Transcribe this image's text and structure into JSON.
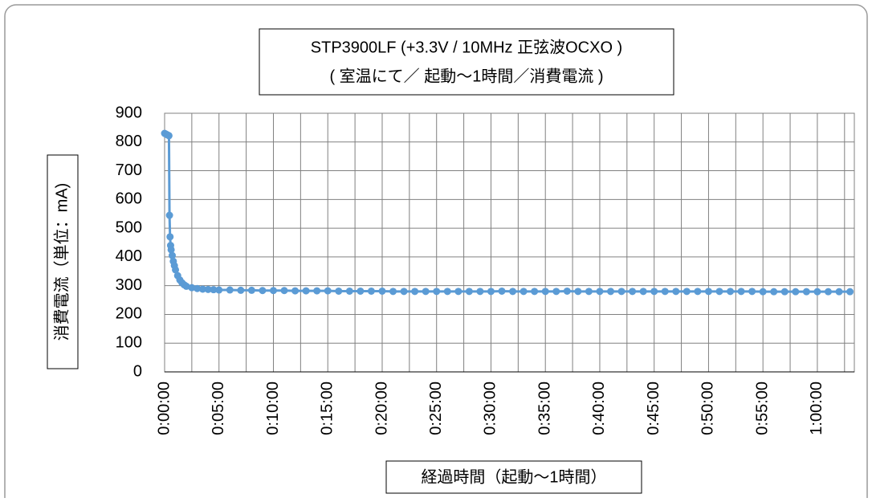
{
  "chart_data": {
    "type": "line",
    "title": [
      "STP3900LF (+3.3V / 10MHz 正弦波OCXO )",
      "( 室温にて／ 起動～1時間／消費電流 )"
    ],
    "x_label": "経過時間（起動～1時間）",
    "y_label": "消費電流（単位：mA)",
    "series": [
      {
        "name": "消費電流",
        "color": "#5b9bd5",
        "x": [
          0,
          0.1,
          0.2,
          0.3,
          0.4,
          0.45,
          0.5,
          0.55,
          0.6,
          0.7,
          0.8,
          0.9,
          1,
          1.2,
          1.4,
          1.6,
          1.8,
          2,
          2.5,
          3,
          3.5,
          4,
          4.5,
          5,
          6,
          7,
          8,
          9,
          10,
          11,
          12,
          13,
          14,
          15,
          16,
          17,
          18,
          19,
          20,
          21,
          22,
          23,
          24,
          25,
          26,
          27,
          28,
          29,
          30,
          31,
          32,
          33,
          34,
          35,
          36,
          37,
          38,
          39,
          40,
          41,
          42,
          43,
          44,
          45,
          46,
          47,
          48,
          49,
          50,
          51,
          52,
          53,
          54,
          55,
          56,
          57,
          58,
          59,
          60,
          61,
          62,
          63
        ],
        "values": [
          830,
          828,
          826,
          824,
          822,
          545,
          470,
          440,
          425,
          405,
          385,
          370,
          355,
          335,
          320,
          310,
          303,
          298,
          293,
          290,
          288,
          287,
          286,
          285,
          285,
          284,
          284,
          283,
          283,
          283,
          282,
          282,
          282,
          282,
          281,
          281,
          281,
          281,
          281,
          280,
          280,
          280,
          280,
          280,
          280,
          280,
          280,
          280,
          280,
          281,
          280,
          280,
          280,
          280,
          280,
          281,
          280,
          280,
          280,
          280,
          280,
          280,
          280,
          280,
          280,
          280,
          280,
          280,
          280,
          280,
          280,
          280,
          280,
          279,
          279,
          279,
          279,
          279,
          279,
          279,
          279,
          279
        ]
      }
    ],
    "xlim": [
      0,
      63.4
    ],
    "xticks": [
      {
        "value": 0,
        "label": "0:00:00"
      },
      {
        "value": 5,
        "label": "0:05:00"
      },
      {
        "value": 10,
        "label": "0:10:00"
      },
      {
        "value": 15,
        "label": "0:15:00"
      },
      {
        "value": 20,
        "label": "0:20:00"
      },
      {
        "value": 25,
        "label": "0:25:00"
      },
      {
        "value": 30,
        "label": "0:30:00"
      },
      {
        "value": 35,
        "label": "0:35:00"
      },
      {
        "value": 40,
        "label": "0:40:00"
      },
      {
        "value": 45,
        "label": "0:45:00"
      },
      {
        "value": 50,
        "label": "0:50:00"
      },
      {
        "value": 55,
        "label": "0:55:00"
      },
      {
        "value": 60,
        "label": "1:00:00"
      }
    ],
    "xminorticks": [
      2.5,
      7.5,
      12.5,
      17.5,
      22.5,
      27.5,
      32.5,
      37.5,
      42.5,
      47.5,
      52.5,
      57.5,
      62.5
    ],
    "ylim": [
      0,
      900
    ],
    "yticks": [
      0,
      100,
      200,
      300,
      400,
      500,
      600,
      700,
      800,
      900
    ],
    "grid": true
  }
}
